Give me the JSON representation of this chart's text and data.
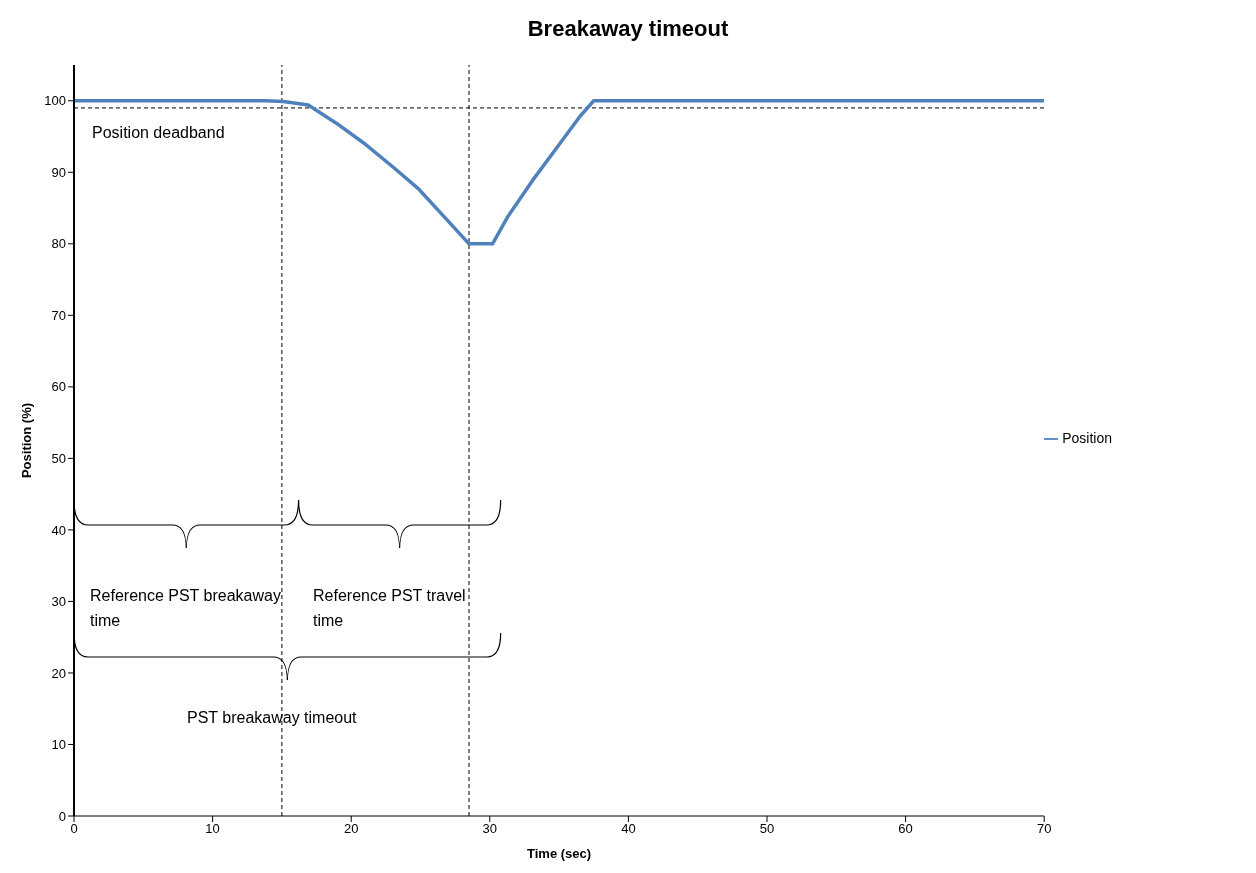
{
  "chart_data": {
    "type": "line",
    "title": "Breakaway timeout",
    "xlabel": "Time (sec)",
    "ylabel": "Position (%)",
    "x": [
      0,
      13.8,
      15.1,
      16.9,
      18.9,
      20.9,
      23.1,
      24.9,
      26.7,
      28.5,
      30.2,
      31.3,
      33.1,
      34.9,
      36.5,
      37.5,
      70
    ],
    "series": [
      {
        "name": "Position",
        "color": "#4f81bd",
        "values": [
          100,
          100,
          99.9,
          99.4,
          96.9,
          94.1,
          90.6,
          87.6,
          83.8,
          80,
          80,
          83.8,
          88.9,
          93.6,
          97.8,
          100,
          100
        ]
      }
    ],
    "xlim": [
      0,
      70
    ],
    "xticks": [
      0,
      10,
      20,
      30,
      40,
      50,
      60,
      70
    ],
    "ylim": [
      0,
      105
    ],
    "yticks": [
      0,
      10,
      20,
      30,
      40,
      50,
      60,
      70,
      80,
      90,
      100
    ],
    "grid": false,
    "legend": "right",
    "marker": "none",
    "line_style": "solid",
    "ref_lines": [
      {
        "axis": "y",
        "value": 99,
        "label": "Position deadband",
        "line_style": "dashed",
        "color": "#000000"
      },
      {
        "axis": "x",
        "value": 15,
        "label": null,
        "line_style": "dashed",
        "color": "#000000"
      },
      {
        "axis": "x",
        "value": 28.5,
        "label": null,
        "line_style": "dashed",
        "color": "#000000"
      }
    ],
    "annotations": [
      "Reference PST breakaway time",
      "Reference PST travel time",
      "PST breakaway timeout"
    ]
  }
}
